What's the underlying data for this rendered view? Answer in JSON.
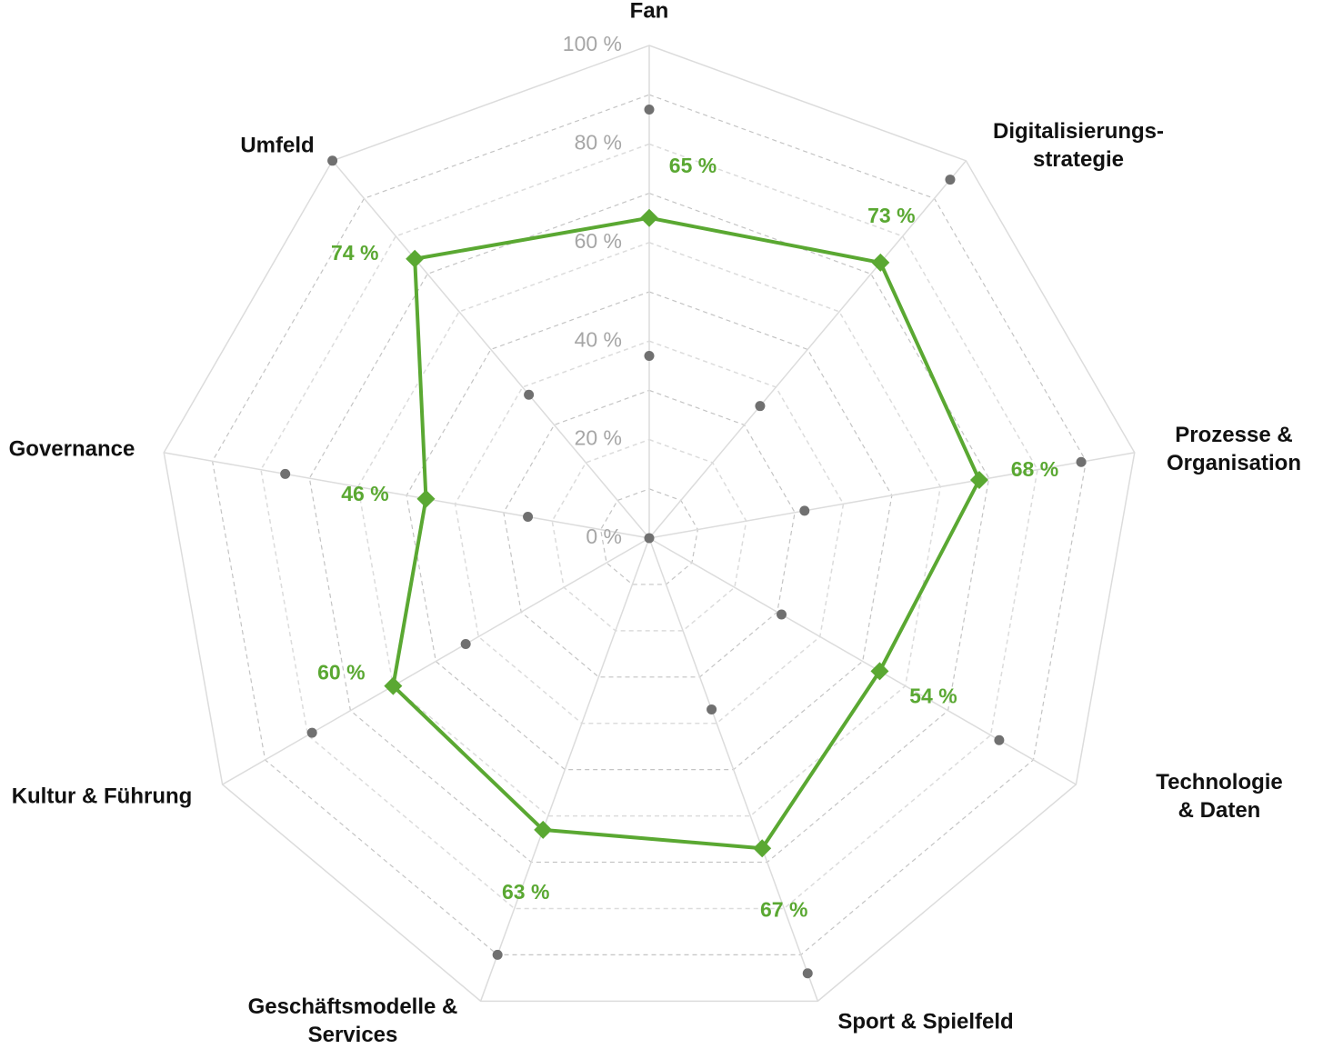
{
  "chart_data": {
    "type": "radar",
    "categories": [
      "Fan",
      "Digitalisierungs-\nstrategie",
      "Prozesse &\nOrganisation",
      "Technologie & Daten",
      "Sport & Spielfeld",
      "Geschäftsmodelle &\nServices",
      "Kultur & Führung",
      "Governance",
      "Umfeld"
    ],
    "series": [
      {
        "color": "#707070",
        "marker": "circle",
        "line": false,
        "values": [
          37,
          35,
          32,
          31,
          37,
          0,
          43,
          25,
          38
        ]
      },
      {
        "color": "#707070",
        "marker": "circle",
        "line": false,
        "values": [
          87,
          95,
          89,
          82,
          94,
          90,
          79,
          75,
          100
        ]
      },
      {
        "color": "#5aa832",
        "marker": "diamond",
        "line": true,
        "values": [
          65,
          73,
          68,
          54,
          67,
          63,
          60,
          46,
          74
        ],
        "value_labels": [
          "65 %",
          "73 %",
          "68 %",
          "54 %",
          "67 %",
          "63 %",
          "60 %",
          "46 %",
          "74 %"
        ]
      }
    ],
    "ylim": [
      0,
      100
    ],
    "yticks": [
      {
        "value": 0,
        "label": "0 %"
      },
      {
        "value": 20,
        "label": "20 %"
      },
      {
        "value": 40,
        "label": "40 %"
      },
      {
        "value": 60,
        "label": "60 %"
      },
      {
        "value": 80,
        "label": "80 %"
      },
      {
        "value": 100,
        "label": "100 %"
      }
    ],
    "minor_yticks": [
      10,
      30,
      50,
      70,
      90
    ],
    "grid": true
  }
}
